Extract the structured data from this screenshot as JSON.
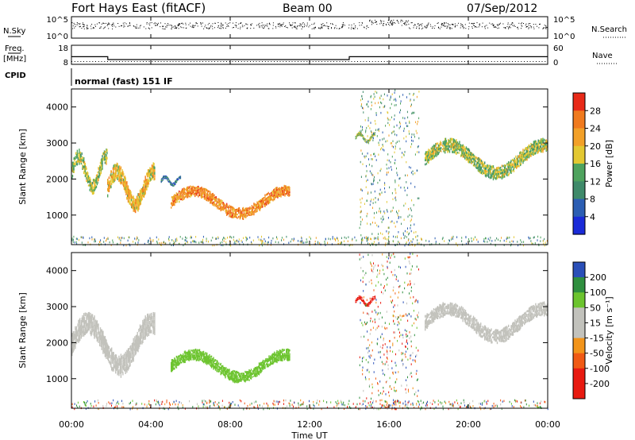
{
  "header": {
    "title": "Fort Hays East (fitACF)",
    "beam": "Beam 00",
    "date": "07/Sep/2012"
  },
  "top_panels": {
    "nsky_label": "N.Sky",
    "nsky_ticks": [
      "10^5",
      "10^0"
    ],
    "nsearch_label": "N.Search",
    "freq_label_1": "Freq.",
    "freq_label_2": "[MHz]",
    "freq_ticks": [
      "18",
      "8"
    ],
    "nave_ticks": [
      "60",
      "0"
    ],
    "nave_label": "Nave",
    "cpid_label": "CPID",
    "cpid_text": "normal (fast) 151 IF"
  },
  "axes": {
    "ylabel": "Slant Range [km]",
    "yticks": [
      "4000",
      "3000",
      "2000",
      "1000"
    ],
    "xlabel": "Time UT",
    "xticks": [
      "00:00",
      "04:00",
      "08:00",
      "12:00",
      "16:00",
      "20:00",
      "00:00"
    ]
  },
  "power_colorbar": {
    "label": "Power [dB]",
    "ticks": [
      "28",
      "24",
      "20",
      "16",
      "12",
      "8",
      "4"
    ]
  },
  "velocity_colorbar": {
    "label": "Velocity [m s⁻¹]",
    "ticks": [
      "200",
      "100",
      "50",
      "15",
      "-15",
      "-50",
      "-100",
      "-200"
    ]
  },
  "chart_data": [
    {
      "type": "line",
      "panel": "N.Sky / N.Search",
      "x": [
        "00:00",
        "04:00",
        "08:00",
        "12:00",
        "16:00",
        "20:00",
        "24:00"
      ],
      "series": [
        {
          "name": "N.Sky",
          "values": [
            50000,
            40000,
            30000,
            30000,
            60000,
            40000,
            30000
          ]
        }
      ]
    },
    {
      "type": "line",
      "panel": "Freq. / Nave",
      "x": [
        "00:00",
        "01:50",
        "01:50",
        "14:00",
        "14:00",
        "24:00"
      ],
      "series": [
        {
          "name": "Freq.",
          "values": [
            12,
            12,
            10.5,
            10.5,
            12,
            12
          ]
        },
        {
          "name": "Nave",
          "values": [
            10,
            10,
            10,
            10,
            10,
            10
          ]
        }
      ],
      "ylim_freq": [
        8,
        18
      ],
      "ylim_nave": [
        0,
        60
      ]
    },
    {
      "type": "heatmap",
      "panel": "Power",
      "xlim": [
        0,
        24
      ],
      "ylim": [
        180,
        4500
      ],
      "colorbar": [
        4,
        8,
        12,
        16,
        20,
        24,
        28
      ],
      "echo_regions": [
        {
          "t_start": 0.0,
          "t_end": 1.8,
          "r_start": 1600,
          "r_end": 2800,
          "power": 16
        },
        {
          "t_start": 1.8,
          "t_end": 4.2,
          "r_start": 1100,
          "r_end": 2400,
          "power": 20
        },
        {
          "t_start": 5.0,
          "t_end": 11.0,
          "r_start": 900,
          "r_end": 1800,
          "power": 24
        },
        {
          "t_start": 4.5,
          "t_end": 5.5,
          "r_start": 1800,
          "r_end": 2100,
          "power": 8
        },
        {
          "t_start": 14.3,
          "t_end": 15.3,
          "r_start": 3000,
          "r_end": 3300,
          "power": 16
        },
        {
          "t_start": 17.8,
          "t_end": 24.0,
          "r_start": 2000,
          "r_end": 3100,
          "power": 16
        }
      ]
    },
    {
      "type": "heatmap",
      "panel": "Velocity",
      "xlim": [
        0,
        24
      ],
      "ylim": [
        180,
        4500
      ],
      "colorbar": [
        -200,
        -100,
        -50,
        -15,
        15,
        50,
        100,
        200
      ],
      "echo_regions": [
        {
          "t_start": 0.0,
          "t_end": 4.2,
          "r_start": 1100,
          "r_end": 2800,
          "velocity": 0
        },
        {
          "t_start": 5.0,
          "t_end": 11.0,
          "r_start": 900,
          "r_end": 1800,
          "velocity": 50
        },
        {
          "t_start": 14.3,
          "t_end": 15.3,
          "r_start": 3000,
          "r_end": 3300,
          "velocity": -200
        },
        {
          "t_start": 17.8,
          "t_end": 24.0,
          "r_start": 2000,
          "r_end": 3100,
          "velocity": 0
        }
      ]
    }
  ]
}
